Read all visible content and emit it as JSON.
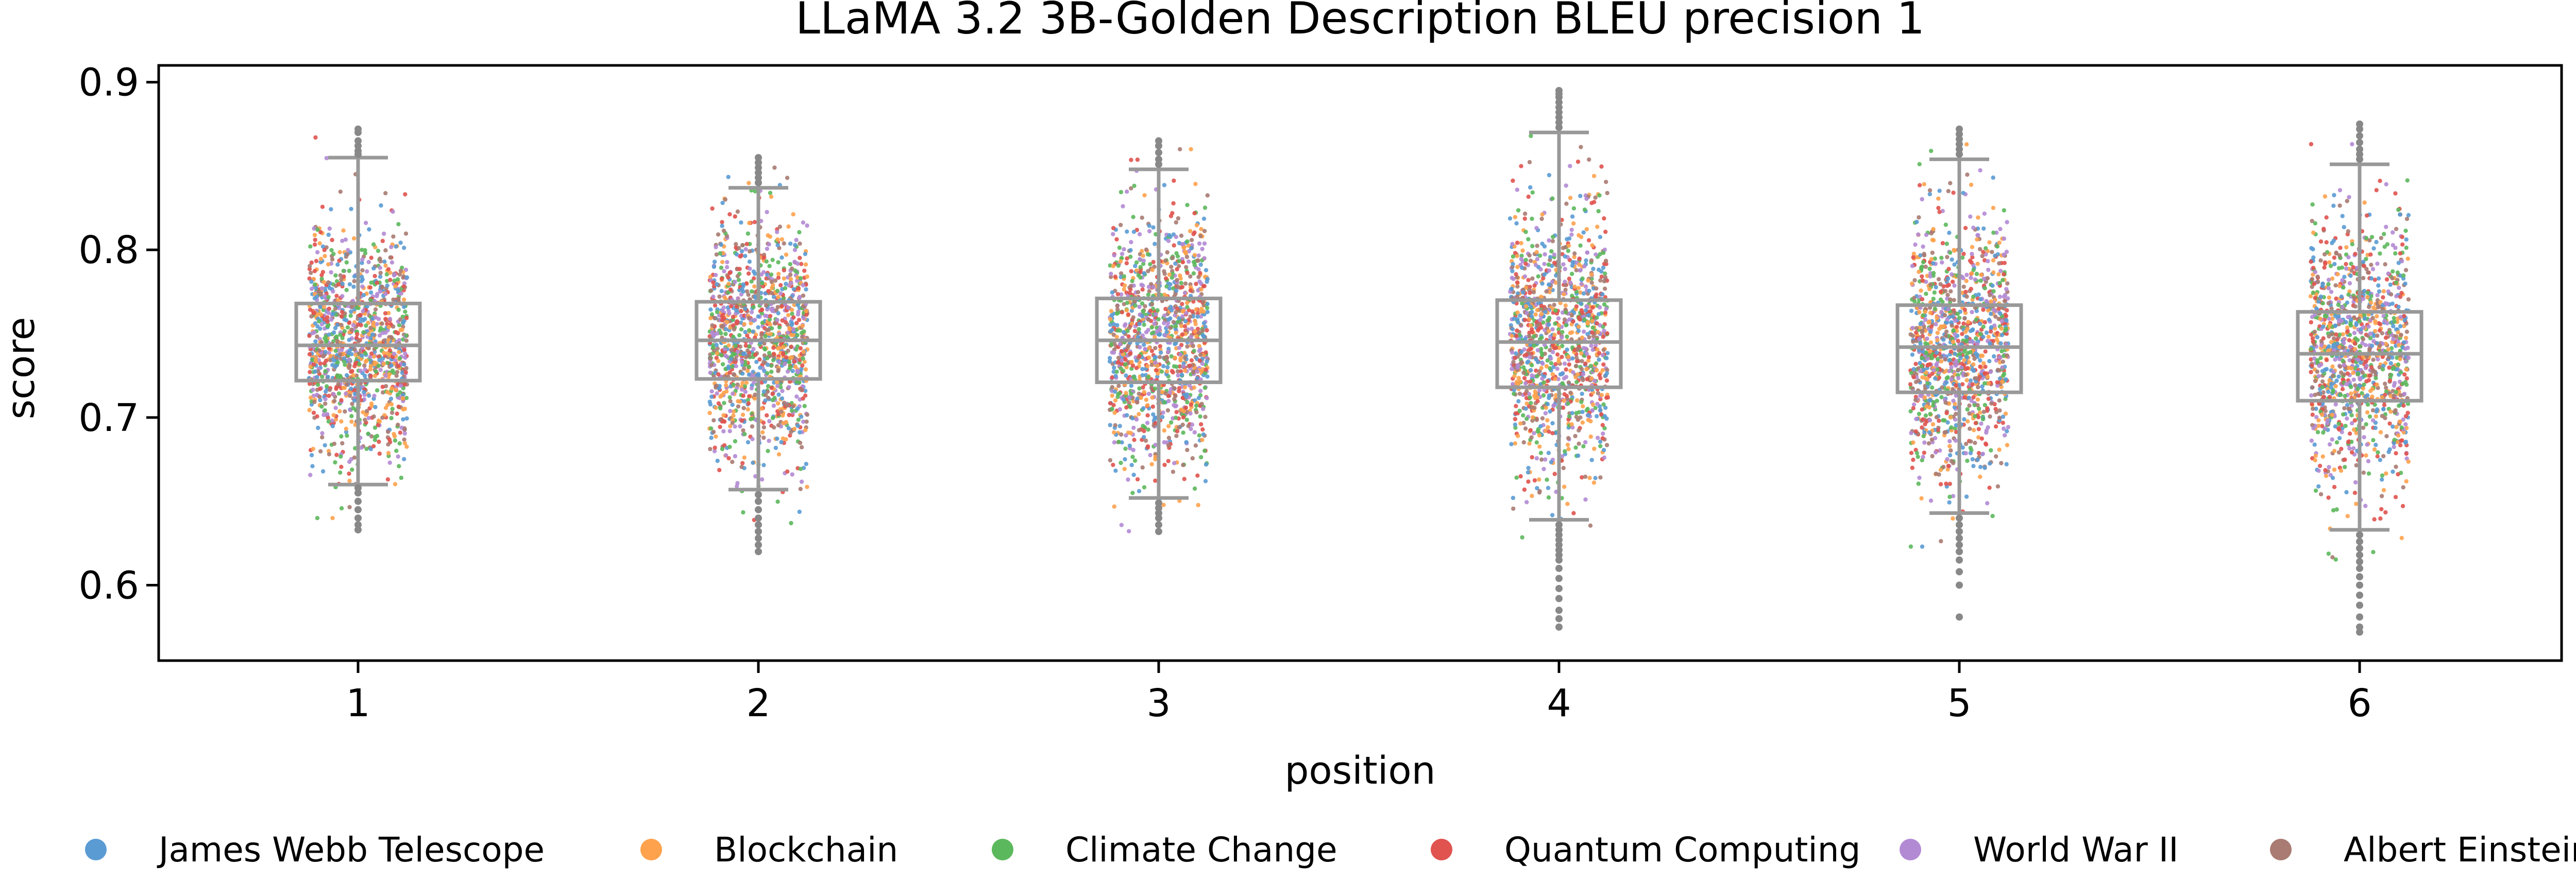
{
  "chart_data": {
    "type": "box+strip",
    "title": "LLaMA 3.2 3B-Golden Description BLEU precision 1",
    "xlabel": "position",
    "ylabel": "score",
    "categories": [
      "1",
      "2",
      "3",
      "4",
      "5",
      "6"
    ],
    "ylim": [
      0.555,
      0.91
    ],
    "yticks": [
      0.6,
      0.7,
      0.8,
      0.9
    ],
    "yticklabels": [
      "0.6",
      "0.7",
      "0.8",
      "0.9"
    ],
    "grid": false,
    "legend_placement": "bottom",
    "boxplot": [
      {
        "position": "1",
        "whisker_low": 0.66,
        "q1": 0.722,
        "median": 0.743,
        "q3": 0.768,
        "whisker_high": 0.855,
        "outliers": [
          0.857,
          0.859,
          0.862,
          0.865,
          0.87,
          0.872,
          0.658,
          0.655,
          0.65,
          0.645,
          0.64,
          0.636,
          0.633
        ]
      },
      {
        "position": "2",
        "whisker_low": 0.657,
        "q1": 0.723,
        "median": 0.746,
        "q3": 0.769,
        "whisker_high": 0.837,
        "outliers": [
          0.84,
          0.843,
          0.846,
          0.849,
          0.852,
          0.855,
          0.654,
          0.65,
          0.645,
          0.64,
          0.636,
          0.632,
          0.628,
          0.624,
          0.62
        ]
      },
      {
        "position": "3",
        "whisker_low": 0.652,
        "q1": 0.721,
        "median": 0.746,
        "q3": 0.771,
        "whisker_high": 0.848,
        "outliers": [
          0.851,
          0.854,
          0.858,
          0.862,
          0.865,
          0.649,
          0.646,
          0.643,
          0.64,
          0.636,
          0.632
        ]
      },
      {
        "position": "4",
        "whisker_low": 0.639,
        "q1": 0.718,
        "median": 0.745,
        "q3": 0.77,
        "whisker_high": 0.87,
        "outliers": [
          0.873,
          0.876,
          0.879,
          0.882,
          0.885,
          0.888,
          0.891,
          0.893,
          0.895,
          0.636,
          0.633,
          0.63,
          0.627,
          0.624,
          0.621,
          0.618,
          0.615,
          0.61,
          0.604,
          0.598,
          0.592,
          0.585,
          0.58,
          0.575
        ]
      },
      {
        "position": "5",
        "whisker_low": 0.643,
        "q1": 0.715,
        "median": 0.742,
        "q3": 0.767,
        "whisker_high": 0.854,
        "outliers": [
          0.857,
          0.86,
          0.863,
          0.866,
          0.869,
          0.872,
          0.64,
          0.636,
          0.632,
          0.628,
          0.624,
          0.62,
          0.615,
          0.608,
          0.6,
          0.581
        ]
      },
      {
        "position": "6",
        "whisker_low": 0.633,
        "q1": 0.71,
        "median": 0.738,
        "q3": 0.763,
        "whisker_high": 0.851,
        "outliers": [
          0.854,
          0.857,
          0.86,
          0.864,
          0.868,
          0.872,
          0.875,
          0.63,
          0.626,
          0.622,
          0.618,
          0.614,
          0.61,
          0.605,
          0.6,
          0.594,
          0.588,
          0.581,
          0.575,
          0.572
        ]
      }
    ],
    "strip_points_per_position": 1200,
    "series": [
      {
        "name": "James Webb Telescope",
        "color": "#5a9bd4"
      },
      {
        "name": "Blockchain",
        "color": "#ffa24d"
      },
      {
        "name": "Climate Change",
        "color": "#5cb85c"
      },
      {
        "name": "Quantum Computing",
        "color": "#e0534f"
      },
      {
        "name": "World War II",
        "color": "#b28ad4"
      },
      {
        "name": "Albert Einstein",
        "color": "#a97b72"
      }
    ],
    "box_color": "#999999",
    "outlier_color": "#888888"
  }
}
